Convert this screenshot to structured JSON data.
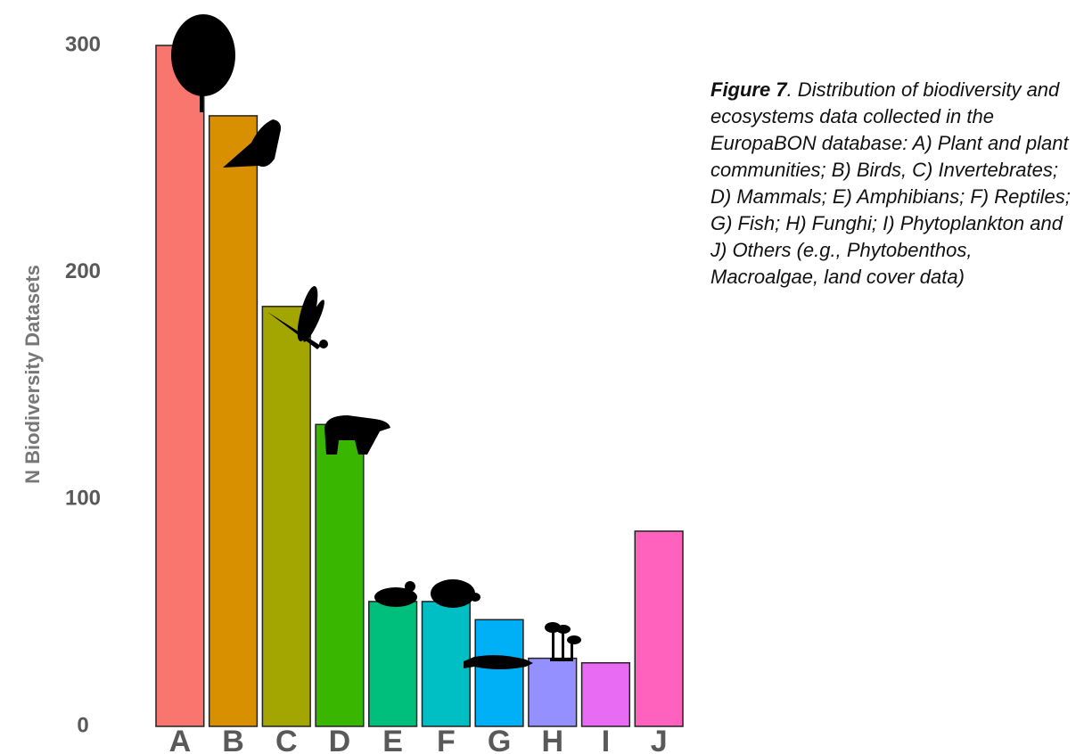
{
  "chart_data": {
    "type": "bar",
    "y_label": "N Biodiversity Datasets",
    "categories": [
      "A",
      "B",
      "C",
      "D",
      "E",
      "F",
      "G",
      "H",
      "I",
      "J"
    ],
    "values": [
      300,
      269,
      185,
      133,
      55,
      55,
      47,
      30,
      28,
      86
    ],
    "colors": [
      "#F8766D",
      "#D89000",
      "#A3A500",
      "#39B600",
      "#00BF7D",
      "#00BFC4",
      "#00B0F6",
      "#9590FF",
      "#E76BF3",
      "#FF62BC"
    ],
    "ylim": [
      0,
      310
    ],
    "yticks": [
      0,
      100,
      200,
      300
    ],
    "grid": false,
    "caption_label": "Figure 7",
    "caption": ". Distribution of biodiversity and ecosystems data collected in the EuropaBON database: A) Plant and plant communities; B) Birds, C) Invertebrates; D) Mammals; E) Amphibians; F) Reptiles; G) Fish; H) Funghi; I) Phytoplankton and J) Others (e.g., Phytobenthos, Macroalgae, land cover data)"
  }
}
